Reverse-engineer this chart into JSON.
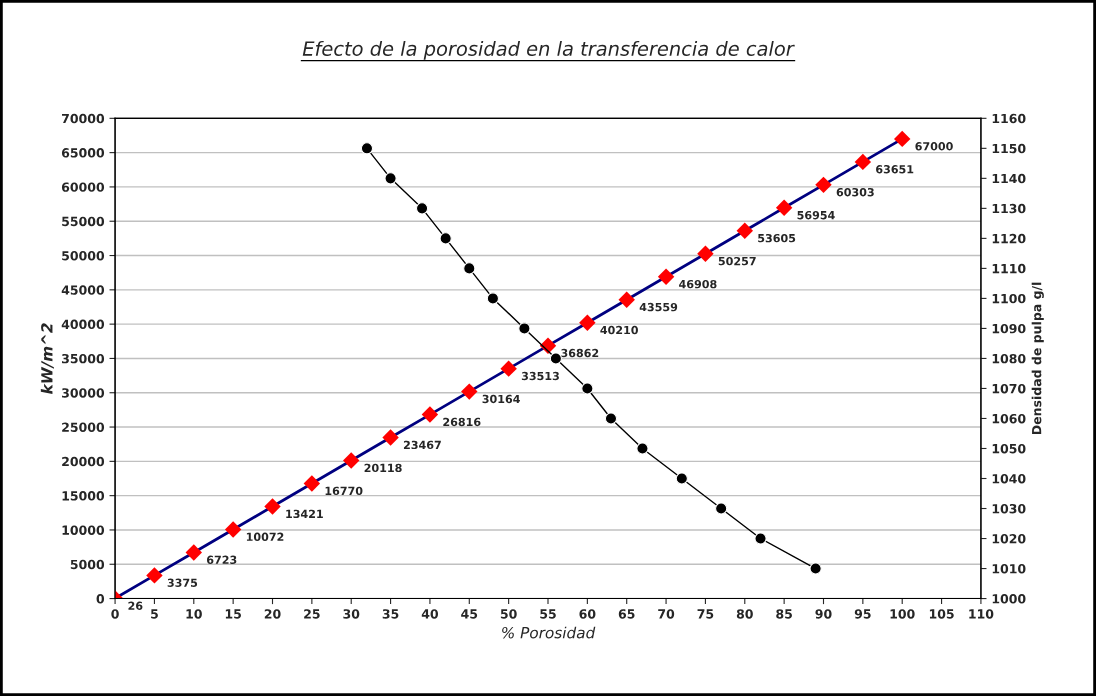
{
  "chart_data": {
    "type": "line",
    "title": "Efecto de la porosidad en la transferencia de calor",
    "xlabel": "% Porosidad",
    "ylabel": "kW/m^2",
    "y2label": "Densidad de pulpa g/l",
    "xlim": [
      0,
      110
    ],
    "xticks": [
      0,
      5,
      10,
      15,
      20,
      25,
      30,
      35,
      40,
      45,
      50,
      55,
      60,
      65,
      70,
      75,
      80,
      85,
      90,
      95,
      100,
      105,
      110
    ],
    "ylim": [
      0,
      70000
    ],
    "yticks": [
      0,
      5000,
      10000,
      15000,
      20000,
      25000,
      30000,
      35000,
      40000,
      45000,
      50000,
      55000,
      60000,
      65000,
      70000
    ],
    "y2lim": [
      1000,
      1160
    ],
    "y2ticks": [
      1000,
      1010,
      1020,
      1030,
      1040,
      1050,
      1060,
      1070,
      1080,
      1090,
      1100,
      1110,
      1120,
      1130,
      1140,
      1150,
      1160
    ],
    "grid": "y",
    "series": [
      {
        "color": "#000080",
        "colors": [
          "#ff0000",
          "#ff0000",
          "#ff0000",
          "#ff0000",
          "#ff0000",
          "#ff0000",
          "#ff0000",
          "#ff0000",
          "#ff0000",
          "#ff0000",
          "#ff0000",
          "#ff0000",
          "#ff0000",
          "#ff0000",
          "#ff0000",
          "#ff0000",
          "#ff0000",
          "#ff0000",
          "#ff0000",
          "#ff0000",
          "#ff0000"
        ],
        "marker": "diamond",
        "data_labels": true,
        "x": [
          0,
          5,
          10,
          15,
          20,
          25,
          30,
          35,
          40,
          45,
          50,
          55,
          60,
          65,
          70,
          75,
          80,
          85,
          90,
          95,
          100
        ],
        "values": [
          26,
          3375,
          6723,
          10072,
          13421,
          16770,
          20118,
          23467,
          26816,
          30164,
          33513,
          36862,
          40210,
          43559,
          46908,
          50257,
          53605,
          56954,
          60303,
          63651,
          67000
        ]
      },
      {
        "axis": "y2",
        "color": "#000000",
        "marker": "circle",
        "x": [
          32,
          35,
          39,
          42,
          45,
          48,
          52,
          56,
          60,
          63,
          67,
          72,
          77,
          82,
          89
        ],
        "values": [
          1150,
          1140,
          1130,
          1120,
          1110,
          1100,
          1090,
          1080,
          1070,
          1060,
          1050,
          1040,
          1030,
          1020,
          1010
        ]
      }
    ]
  }
}
